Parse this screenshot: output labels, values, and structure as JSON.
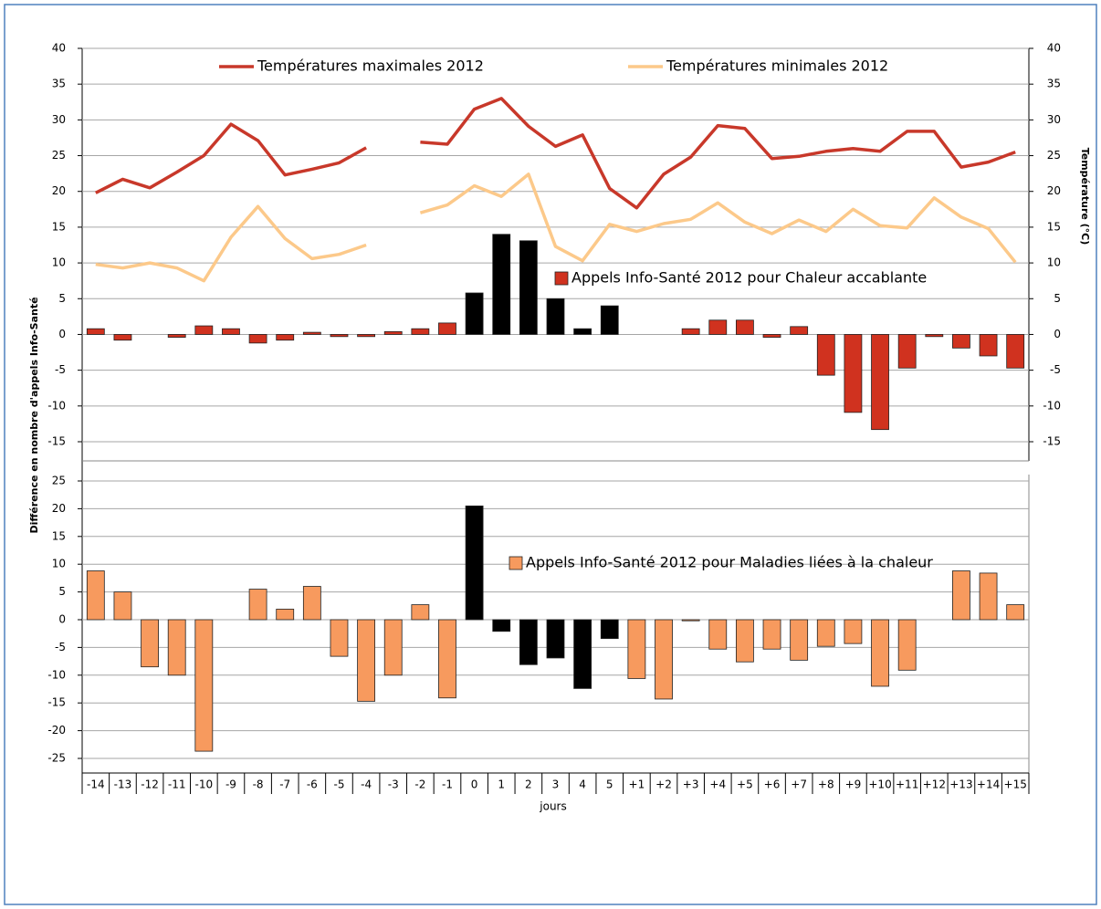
{
  "chart_data": {
    "type": "bar-line",
    "categories": [
      "-14",
      "-13",
      "-12",
      "-11",
      "-10",
      "-9",
      "-8",
      "-7",
      "-6",
      "-5",
      "-4",
      "-3",
      "-2",
      "-1",
      "0",
      "1",
      "2",
      "3",
      "4",
      "5",
      "+1",
      "+2",
      "+3",
      "+4",
      "+5",
      "+6",
      "+7",
      "+8",
      "+9",
      "+10",
      "+11",
      "+12",
      "+13",
      "+14",
      "+15"
    ],
    "x_label": "jours",
    "y_label": "Différence en nombre d'appels Info-Santé",
    "y2_label": "Température (°C)",
    "grid": true,
    "panels": [
      {
        "ylim": [
          -15,
          40
        ],
        "yticks": [
          40,
          35,
          30,
          25,
          20,
          15,
          10,
          5,
          0,
          -5,
          -10,
          -15
        ],
        "y2lim": [
          -15,
          40
        ],
        "y2ticks": [
          40,
          35,
          30,
          25,
          20,
          15,
          10,
          5,
          0,
          -5,
          -10,
          -15
        ],
        "series": [
          {
            "name": "Températures maximales 2012",
            "type": "line",
            "axis": "y2",
            "color": "#c8382a",
            "values": [
              19.8,
              21.7,
              20.5,
              22.7,
              25.0,
              29.4,
              27.1,
              22.3,
              23.1,
              24.0,
              26.1,
              null,
              26.9,
              26.6,
              31.5,
              33.0,
              29.1,
              26.3,
              27.9,
              20.4,
              17.7,
              22.4,
              24.8,
              29.2,
              28.8,
              24.6,
              24.9,
              25.6,
              26.0,
              25.6,
              28.4,
              28.4,
              23.4,
              24.1,
              25.5
            ]
          },
          {
            "name": "Températures minimales 2012",
            "type": "line",
            "axis": "y2",
            "color": "#fcc98a",
            "values": [
              9.8,
              9.3,
              10.0,
              9.3,
              7.5,
              13.6,
              17.9,
              13.4,
              10.6,
              11.2,
              12.5,
              null,
              17.0,
              18.1,
              20.8,
              19.3,
              22.4,
              12.3,
              10.3,
              15.4,
              14.4,
              15.5,
              16.1,
              18.4,
              15.7,
              14.1,
              16.0,
              14.4,
              17.5,
              15.2,
              14.9,
              19.1,
              16.4,
              14.8,
              10.1
            ]
          },
          {
            "name": "Appels Info-Santé 2012 pour Chaleur accablante",
            "type": "bar",
            "color": "#d0321f",
            "colors": [
              "#d0321f",
              "#d0321f",
              "#d0321f",
              "#d0321f",
              "#d0321f",
              "#d0321f",
              "#d0321f",
              "#d0321f",
              "#d0321f",
              "#d0321f",
              "#d0321f",
              "#d0321f",
              "#d0321f",
              "#d0321f",
              "#000000",
              "#000000",
              "#000000",
              "#000000",
              "#000000",
              "#000000",
              "#d0321f",
              "#d0321f",
              "#d0321f",
              "#d0321f",
              "#d0321f",
              "#d0321f",
              "#d0321f",
              "#d0321f",
              "#d0321f",
              "#d0321f",
              "#d0321f",
              "#d0321f",
              "#d0321f",
              "#d0321f",
              "#d0321f"
            ],
            "values": [
              0.8,
              -0.8,
              0,
              -0.4,
              1.2,
              0.8,
              -1.2,
              -0.8,
              0.3,
              -0.3,
              -0.3,
              0.4,
              0.8,
              1.6,
              5.8,
              14,
              13.1,
              5.0,
              0.8,
              4.0,
              0,
              0,
              0.8,
              2.0,
              2.0,
              -0.4,
              1.1,
              -5.7,
              -10.9,
              -13.3,
              -4.7,
              -0.3,
              -1.9,
              -3.0,
              -4.7
            ]
          }
        ]
      },
      {
        "ylim": [
          -25,
          25
        ],
        "yticks": [
          25,
          20,
          15,
          10,
          5,
          0,
          -5,
          -10,
          -15,
          -20,
          -25
        ],
        "series": [
          {
            "name": "Appels Info-Santé 2012 pour Maladies liées à la chaleur",
            "type": "bar",
            "color": "#f79a5e",
            "colors": [
              "#f79a5e",
              "#f79a5e",
              "#f79a5e",
              "#f79a5e",
              "#f79a5e",
              "#f79a5e",
              "#f79a5e",
              "#f79a5e",
              "#f79a5e",
              "#f79a5e",
              "#f79a5e",
              "#f79a5e",
              "#f79a5e",
              "#f79a5e",
              "#000000",
              "#000000",
              "#000000",
              "#000000",
              "#000000",
              "#000000",
              "#f79a5e",
              "#f79a5e",
              "#f79a5e",
              "#f79a5e",
              "#f79a5e",
              "#f79a5e",
              "#f79a5e",
              "#f79a5e",
              "#f79a5e",
              "#f79a5e",
              "#f79a5e",
              "#f79a5e",
              "#f79a5e",
              "#f79a5e",
              "#f79a5e"
            ],
            "values": [
              8.8,
              5.0,
              -8.5,
              -10.0,
              -23.7,
              0,
              5.5,
              1.9,
              6.0,
              -6.6,
              -14.7,
              -10.0,
              2.7,
              -14.1,
              20.5,
              -2.1,
              -8.1,
              -6.9,
              -12.4,
              -3.4,
              -10.6,
              -14.3,
              -0.2,
              -5.3,
              -7.6,
              -5.3,
              -7.3,
              -4.8,
              -4.3,
              -12.0,
              -9.1,
              0,
              8.8,
              8.4,
              2.7
            ]
          }
        ]
      }
    ]
  }
}
